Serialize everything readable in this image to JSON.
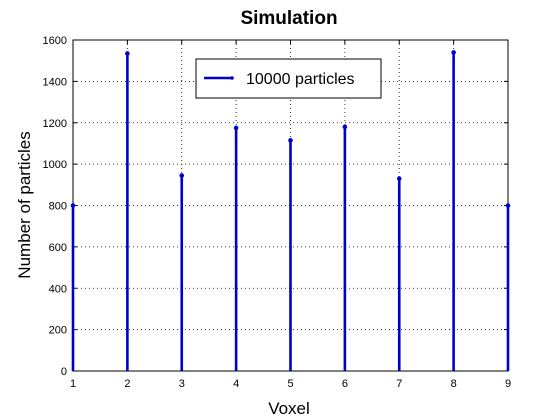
{
  "chart_data": {
    "type": "stem",
    "title": "Simulation",
    "xlabel": "Voxel",
    "ylabel": "Number of particles",
    "x": [
      1,
      2,
      3,
      4,
      5,
      6,
      7,
      8,
      9
    ],
    "series": [
      {
        "name": "10000 particles",
        "color": "#0000cc",
        "values": [
          800,
          1535,
          945,
          1175,
          1115,
          1180,
          930,
          1540,
          800
        ]
      }
    ],
    "xlim": [
      1,
      9
    ],
    "ylim": [
      0,
      1600
    ],
    "xticks": [
      1,
      2,
      3,
      4,
      5,
      6,
      7,
      8,
      9
    ],
    "yticks": [
      0,
      200,
      400,
      600,
      800,
      1000,
      1200,
      1400,
      1600
    ],
    "grid": true,
    "legend_position": "top-center"
  }
}
